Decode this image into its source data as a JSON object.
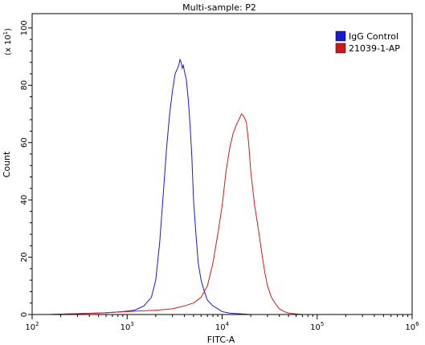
{
  "chart_data": {
    "type": "line",
    "title": "Multi-sample: P2",
    "xlabel": "FITC-A",
    "ylabel": "Count",
    "y_multiplier_label": "(x 10",
    "y_multiplier_exp": "1",
    "x_scale": "log",
    "xlim": [
      100,
      1000000
    ],
    "ylim": [
      0,
      105
    ],
    "x_ticks": [
      {
        "value": 100,
        "base": "10",
        "exp": "2"
      },
      {
        "value": 1000,
        "base": "10",
        "exp": "3"
      },
      {
        "value": 10000,
        "base": "10",
        "exp": "4"
      },
      {
        "value": 100000,
        "base": "10",
        "exp": "5"
      },
      {
        "value": 1000000,
        "base": "10",
        "exp": "6"
      }
    ],
    "y_ticks": [
      0,
      20,
      40,
      60,
      80,
      100
    ],
    "legend_position": "top-right",
    "series": [
      {
        "name": "IgG Control",
        "color": "#1a1acc",
        "x": [
          150,
          300,
          600,
          900,
          1200,
          1500,
          1800,
          2000,
          2200,
          2400,
          2600,
          2800,
          3000,
          3200,
          3400,
          3500,
          3600,
          3700,
          3800,
          3900,
          4000,
          4200,
          4400,
          4600,
          4800,
          5000,
          5300,
          5600,
          6000,
          6500,
          7000,
          8000,
          9000,
          10000,
          12000,
          20000
        ],
        "y": [
          0,
          0.3,
          0.6,
          1.0,
          1.5,
          3,
          6,
          12,
          25,
          42,
          58,
          70,
          78,
          84,
          86,
          87,
          89,
          88,
          86,
          87,
          85,
          82,
          75,
          66,
          55,
          40,
          28,
          18,
          12,
          8,
          5,
          3,
          2,
          1,
          0.5,
          0
        ]
      },
      {
        "name": "21039-1-AP",
        "color": "#cc1a1a",
        "x": [
          150,
          500,
          1000,
          2000,
          3000,
          4000,
          5000,
          6000,
          7000,
          8000,
          9000,
          10000,
          11000,
          12000,
          13000,
          14000,
          15000,
          16000,
          17000,
          18000,
          19000,
          20000,
          22000,
          24000,
          26000,
          28000,
          30000,
          33000,
          36000,
          40000,
          45000,
          50000,
          60000,
          70000
        ],
        "y": [
          0,
          0.5,
          1,
          1.5,
          2,
          3,
          4,
          6,
          10,
          18,
          28,
          38,
          50,
          58,
          63,
          66,
          68,
          70,
          69,
          67,
          60,
          50,
          38,
          30,
          22,
          15,
          10,
          6,
          4,
          2,
          1,
          0.5,
          0.2,
          0
        ]
      }
    ]
  }
}
